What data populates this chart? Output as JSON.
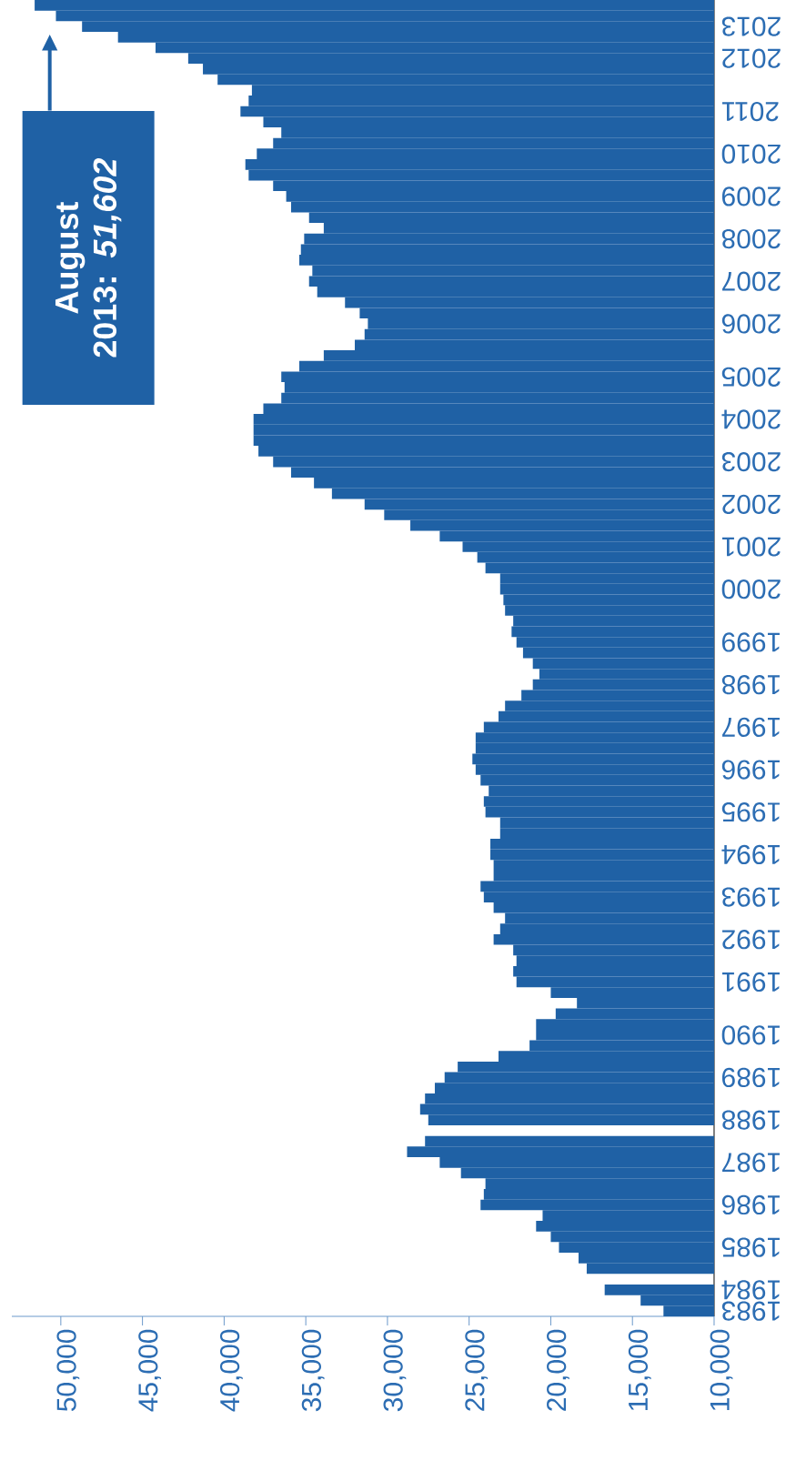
{
  "chart_data": {
    "type": "bar",
    "orientation": "horizontal",
    "color": "#1f61a5",
    "categories": [
      null,
      null,
      "2013",
      null,
      null,
      "2012",
      null,
      null,
      null,
      null,
      "2011",
      null,
      null,
      null,
      "2010",
      null,
      null,
      null,
      "2009",
      null,
      null,
      null,
      "2008",
      null,
      null,
      null,
      "2007",
      null,
      null,
      null,
      "2006",
      null,
      null,
      null,
      null,
      "2005",
      null,
      null,
      null,
      "2004",
      null,
      null,
      null,
      "2003",
      null,
      null,
      null,
      "2002",
      null,
      null,
      null,
      "2001",
      null,
      null,
      null,
      "2000",
      null,
      null,
      null,
      null,
      "1999",
      null,
      null,
      null,
      "1998",
      null,
      null,
      null,
      "1997",
      null,
      null,
      null,
      "1996",
      null,
      null,
      null,
      "1995",
      null,
      null,
      null,
      "1994",
      null,
      null,
      null,
      "1993",
      null,
      null,
      null,
      "1992",
      null,
      null,
      null,
      "1991",
      null,
      null,
      null,
      null,
      "1990",
      null,
      null,
      null,
      "1989",
      null,
      null,
      null,
      "1988",
      null,
      null,
      null,
      "1987",
      null,
      null,
      null,
      "1986",
      null,
      null,
      null,
      "1985",
      null,
      null,
      null,
      "1984",
      null,
      "1983"
    ],
    "values": [
      51602,
      50300,
      48700,
      46500,
      44200,
      42200,
      41300,
      40400,
      38300,
      38500,
      39000,
      37600,
      36500,
      37000,
      38000,
      38700,
      38500,
      37000,
      36200,
      35900,
      34800,
      33900,
      35100,
      35300,
      35400,
      34600,
      34800,
      34300,
      32600,
      31700,
      31200,
      31400,
      32000,
      33900,
      35400,
      36500,
      36300,
      36500,
      37600,
      38200,
      38200,
      38200,
      37900,
      37000,
      35900,
      34500,
      33400,
      31400,
      30200,
      28600,
      26800,
      25400,
      24500,
      24000,
      23100,
      23100,
      22900,
      22800,
      22300,
      22400,
      22100,
      21700,
      21100,
      20700,
      21100,
      21800,
      22800,
      23200,
      24100,
      24600,
      24600,
      24800,
      24600,
      24300,
      23800,
      24100,
      24000,
      23100,
      23100,
      23700,
      23700,
      23500,
      23500,
      24300,
      24100,
      23500,
      22800,
      23100,
      23500,
      22300,
      22100,
      22300,
      22100,
      20000,
      18400,
      19700,
      20900,
      20900,
      21300,
      23200,
      25700,
      26500,
      27100,
      27700,
      28000,
      27500,
      null,
      27700,
      28800,
      26800,
      25500,
      24000,
      24100,
      24300,
      20500,
      20900,
      20000,
      19500,
      18300,
      17800,
      null,
      16700,
      14500,
      13100
    ],
    "xlim": [
      53000,
      10000
    ],
    "xticks": [
      {
        "value": 50000,
        "label": "50,000"
      },
      {
        "value": 45000,
        "label": "45,000"
      },
      {
        "value": 40000,
        "label": "40,000"
      },
      {
        "value": 35000,
        "label": "35,000"
      },
      {
        "value": 30000,
        "label": "30,000"
      },
      {
        "value": 25000,
        "label": "25,000"
      },
      {
        "value": 20000,
        "label": "20,000"
      },
      {
        "value": 15000,
        "label": "15,000"
      },
      {
        "value": 10000,
        "label": "10,000"
      }
    ],
    "annotations": [
      "August 2013: *51,602*"
    ]
  }
}
